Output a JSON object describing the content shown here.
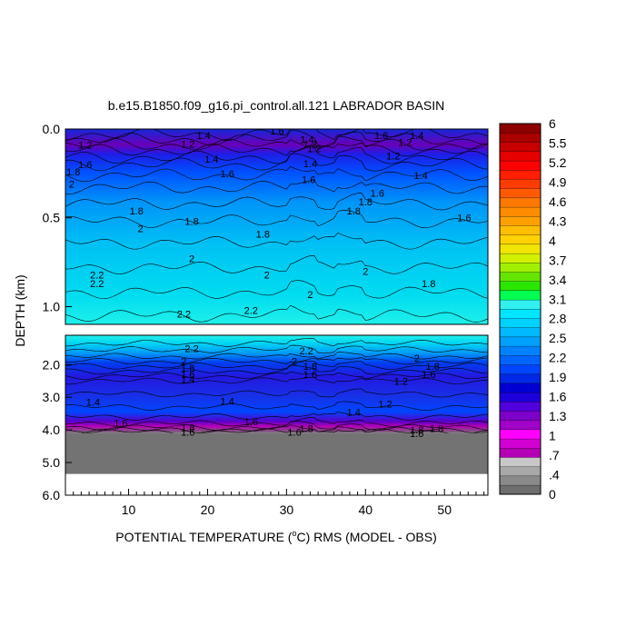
{
  "chart_data": {
    "type": "heatmap",
    "title": "b.e15.B1850.f09_g16.pi_control.all.121 LABRADOR BASIN",
    "xlabel": "POTENTIAL TEMPERATURE (",
    "xlabel_degree": "o",
    "xlabel_rest": "C) RMS (MODEL - OBS)",
    "ylabel": "DEPTH (km)",
    "xlim": [
      2,
      55.5
    ],
    "x_ticks": [
      "10",
      "20",
      "30",
      "40",
      "50"
    ],
    "x_tick_values": [
      10,
      20,
      30,
      40,
      50
    ],
    "upper_panel": {
      "ylim": [
        0.0,
        1.1
      ],
      "y_ticks": [
        "0.0",
        "0.5",
        "1.0"
      ],
      "y_tick_values": [
        0.0,
        0.5,
        1.0
      ]
    },
    "lower_panel": {
      "ylim": [
        1.1,
        6.0
      ],
      "y_ticks": [
        "2.0",
        "3.0",
        "4.0",
        "5.0",
        "6.0"
      ],
      "y_tick_values": [
        2.0,
        3.0,
        4.0,
        5.0,
        6.0
      ],
      "ocean_floor_depth": 4.1,
      "masked_below_to": 5.35,
      "masked_color": "#737373"
    },
    "colorbar": {
      "labels": [
        "0",
        ".4",
        ".7",
        "1",
        "1.3",
        "1.6",
        "1.9",
        "2.2",
        "2.5",
        "2.8",
        "3.1",
        "3.4",
        "3.7",
        "4",
        "4.3",
        "4.6",
        "4.9",
        "5.2",
        "5.5",
        "6"
      ],
      "colors": [
        "#6e6e6e",
        "#8a8a8a",
        "#a8a8a8",
        "#c8c8c8",
        "#b400b4",
        "#d200d2",
        "#ff00ff",
        "#a000c8",
        "#7d00c8",
        "#5000dc",
        "#1e00dc",
        "#0000d2",
        "#0028e6",
        "#0046ff",
        "#0064ff",
        "#0082ff",
        "#00a0ff",
        "#00b9ff",
        "#00d2ff",
        "#00e6ff",
        "#32f0f0",
        "#00ff50",
        "#28e600",
        "#64e600",
        "#a0f000",
        "#d2f000",
        "#f0e600",
        "#ffd200",
        "#ffbe00",
        "#ffa000",
        "#ff8c00",
        "#ff7800",
        "#ff5a00",
        "#ff3c00",
        "#ff1e00",
        "#ff0000",
        "#e60000",
        "#c80000",
        "#aa0000",
        "#8c0000"
      ]
    },
    "contour_labels_upper": [
      {
        "text": "1.6",
        "x": 28.8,
        "y": 0.01
      },
      {
        "text": "1.4",
        "x": 19.5,
        "y": 0.035
      },
      {
        "text": "1.4",
        "x": 32.6,
        "y": 0.06
      },
      {
        "text": "1.6",
        "x": 42.0,
        "y": 0.035
      },
      {
        "text": "1.4",
        "x": 46.5,
        "y": 0.035
      },
      {
        "text": "1.2",
        "x": 4.5,
        "y": 0.09
      },
      {
        "text": "1.2",
        "x": 45.0,
        "y": 0.075
      },
      {
        "text": "1.2",
        "x": 17.5,
        "y": 0.085
      },
      {
        "text": "1.2",
        "x": 33.0,
        "y": 0.085
      },
      {
        "text": "1.2",
        "x": 33.5,
        "y": 0.11
      },
      {
        "text": "1.2",
        "x": 43.5,
        "y": 0.15
      },
      {
        "text": "1.4",
        "x": 20.5,
        "y": 0.17
      },
      {
        "text": "1.4",
        "x": 33.0,
        "y": 0.195
      },
      {
        "text": "1.6",
        "x": 4.5,
        "y": 0.2
      },
      {
        "text": "1.4",
        "x": 47.0,
        "y": 0.26
      },
      {
        "text": "1.8",
        "x": 3.0,
        "y": 0.24
      },
      {
        "text": "2",
        "x": 2.8,
        "y": 0.31
      },
      {
        "text": "1.6",
        "x": 22.5,
        "y": 0.25
      },
      {
        "text": "1.6",
        "x": 32.8,
        "y": 0.285
      },
      {
        "text": "1.6",
        "x": 41.5,
        "y": 0.36
      },
      {
        "text": "1.8",
        "x": 11.0,
        "y": 0.46
      },
      {
        "text": "1.8",
        "x": 38.5,
        "y": 0.46
      },
      {
        "text": "1.8",
        "x": 40.0,
        "y": 0.41
      },
      {
        "text": "1.6",
        "x": 52.5,
        "y": 0.5
      },
      {
        "text": "2",
        "x": 11.5,
        "y": 0.56
      },
      {
        "text": "1.8",
        "x": 18.0,
        "y": 0.52
      },
      {
        "text": "1.8",
        "x": 27.0,
        "y": 0.59
      },
      {
        "text": "2",
        "x": 18.0,
        "y": 0.73
      },
      {
        "text": "2",
        "x": 40.0,
        "y": 0.8
      },
      {
        "text": "2",
        "x": 27.5,
        "y": 0.82
      },
      {
        "text": "2.2",
        "x": 6.0,
        "y": 0.82
      },
      {
        "text": "2.2",
        "x": 6.0,
        "y": 0.87
      },
      {
        "text": "1.8",
        "x": 48.0,
        "y": 0.87
      },
      {
        "text": "2",
        "x": 33.0,
        "y": 0.93
      },
      {
        "text": "2.2",
        "x": 17.0,
        "y": 1.04
      },
      {
        "text": "2.2",
        "x": 25.5,
        "y": 1.02
      }
    ],
    "contour_labels_lower": [
      {
        "text": "2.2",
        "x": 18.0,
        "y": 1.5
      },
      {
        "text": "2.2",
        "x": 32.5,
        "y": 1.58
      },
      {
        "text": "2",
        "x": 17.0,
        "y": 1.9
      },
      {
        "text": "2",
        "x": 31.0,
        "y": 1.9
      },
      {
        "text": "2",
        "x": 46.5,
        "y": 1.8
      },
      {
        "text": "1.8",
        "x": 17.5,
        "y": 2.1
      },
      {
        "text": "1.8",
        "x": 33.0,
        "y": 2.05
      },
      {
        "text": "1.8",
        "x": 48.5,
        "y": 2.05
      },
      {
        "text": "1.6",
        "x": 17.5,
        "y": 2.3
      },
      {
        "text": "1.6",
        "x": 33.0,
        "y": 2.3
      },
      {
        "text": "1.6",
        "x": 48.0,
        "y": 2.3
      },
      {
        "text": "1.4",
        "x": 17.5,
        "y": 2.45
      },
      {
        "text": "1.2",
        "x": 44.5,
        "y": 2.5
      },
      {
        "text": "1.4",
        "x": 5.5,
        "y": 3.15
      },
      {
        "text": "1.4",
        "x": 22.5,
        "y": 3.12
      },
      {
        "text": "1.2",
        "x": 42.5,
        "y": 3.2
      },
      {
        "text": "1.4",
        "x": 38.5,
        "y": 3.45
      },
      {
        "text": "1.6",
        "x": 9.0,
        "y": 3.78
      },
      {
        "text": "1.6",
        "x": 25.5,
        "y": 3.75
      },
      {
        "text": "1.8",
        "x": 17.5,
        "y": 3.92
      },
      {
        "text": "1.8",
        "x": 32.5,
        "y": 3.95
      },
      {
        "text": "1.8",
        "x": 49.0,
        "y": 3.95
      },
      {
        "text": "1.8",
        "x": 46.5,
        "y": 4.0
      },
      {
        "text": "1.6",
        "x": 17.5,
        "y": 4.06
      },
      {
        "text": "1.6",
        "x": 31.0,
        "y": 4.06
      },
      {
        "text": "1.6",
        "x": 46.5,
        "y": 4.1
      }
    ]
  }
}
